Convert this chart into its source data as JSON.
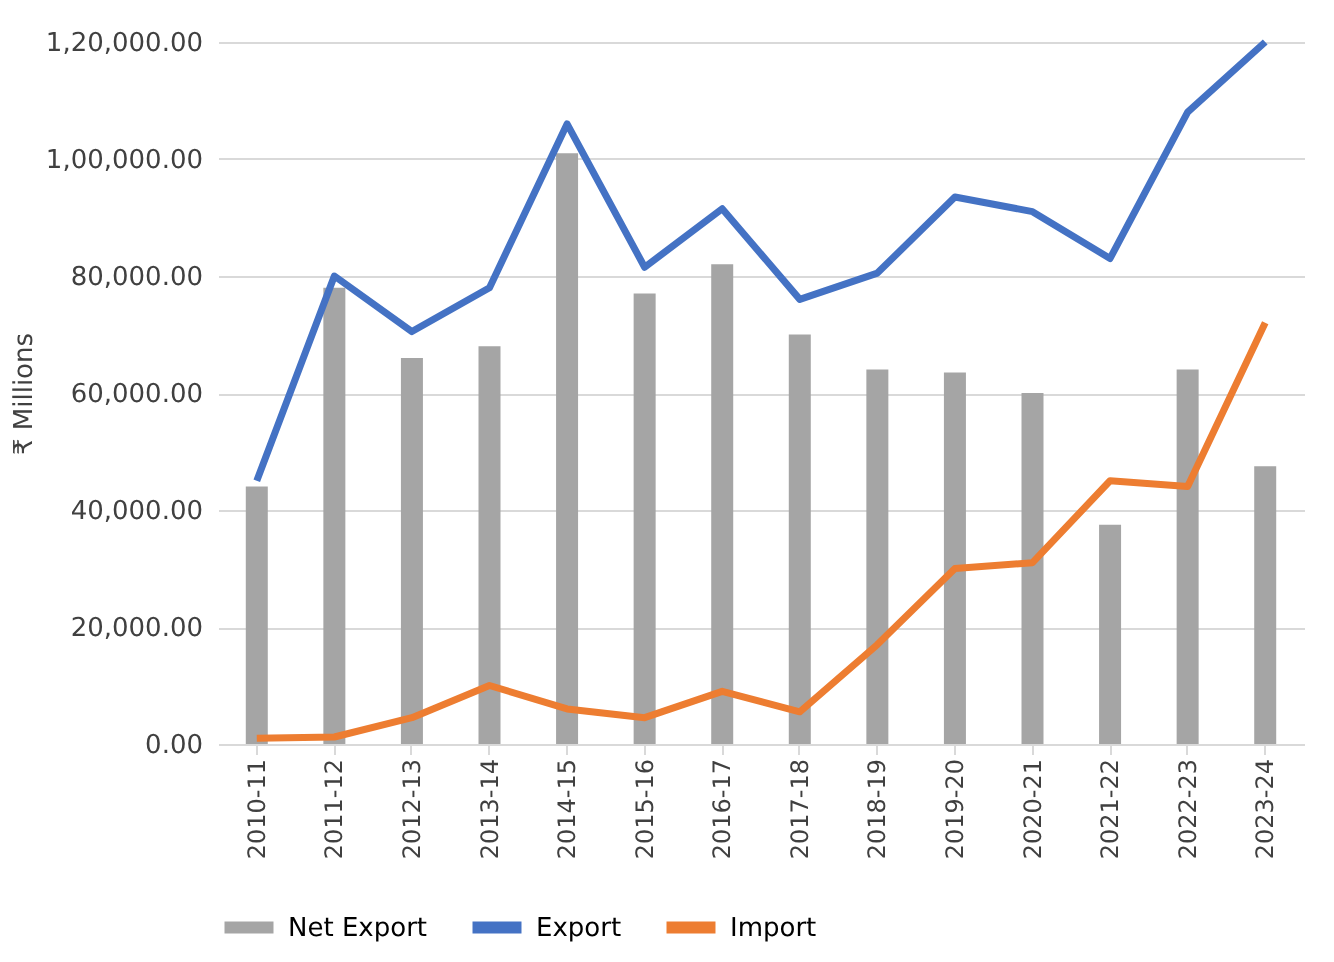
{
  "chart_data": {
    "type": "bar",
    "ylabel": "₹ Millions",
    "categories": [
      "2010-11",
      "2011-12",
      "2012-13",
      "2013-14",
      "2014-15",
      "2015-16",
      "2016-17",
      "2017-18",
      "2018-19",
      "2019-20",
      "2020-21",
      "2021-22",
      "2022-23",
      "2023-24"
    ],
    "series": [
      {
        "name": "Net Export",
        "color": "#a5a5a5",
        "values": [
          44000,
          78000,
          66000,
          68000,
          101000,
          77000,
          82000,
          70000,
          64000,
          63500,
          60000,
          37500,
          64000,
          47500
        ]
      },
      {
        "name": "Export",
        "type": "line",
        "color": "#4472c4",
        "values": [
          45000,
          80000,
          70500,
          78000,
          106000,
          81500,
          91500,
          76000,
          80500,
          93500,
          91000,
          83000,
          108000,
          120000
        ]
      },
      {
        "name": "Import",
        "type": "line",
        "color": "#ed7d31",
        "values": [
          1000,
          1200,
          4500,
          10000,
          6000,
          4500,
          9000,
          5500,
          17000,
          30000,
          31000,
          45000,
          44000,
          72000
        ]
      }
    ],
    "ylim": [
      0,
      120000
    ],
    "yticks": [
      {
        "value": 0,
        "label": "0.00"
      },
      {
        "value": 20000,
        "label": "20,000.00"
      },
      {
        "value": 40000,
        "label": "40,000.00"
      },
      {
        "value": 60000,
        "label": "60,000.00"
      },
      {
        "value": 80000,
        "label": "80,000.00"
      },
      {
        "value": 100000,
        "label": "1,00,000.00"
      },
      {
        "value": 120000,
        "label": "1,20,000.00"
      }
    ],
    "grid": "y",
    "legend": "bottom",
    "line_style": "solid",
    "marker": "none"
  }
}
